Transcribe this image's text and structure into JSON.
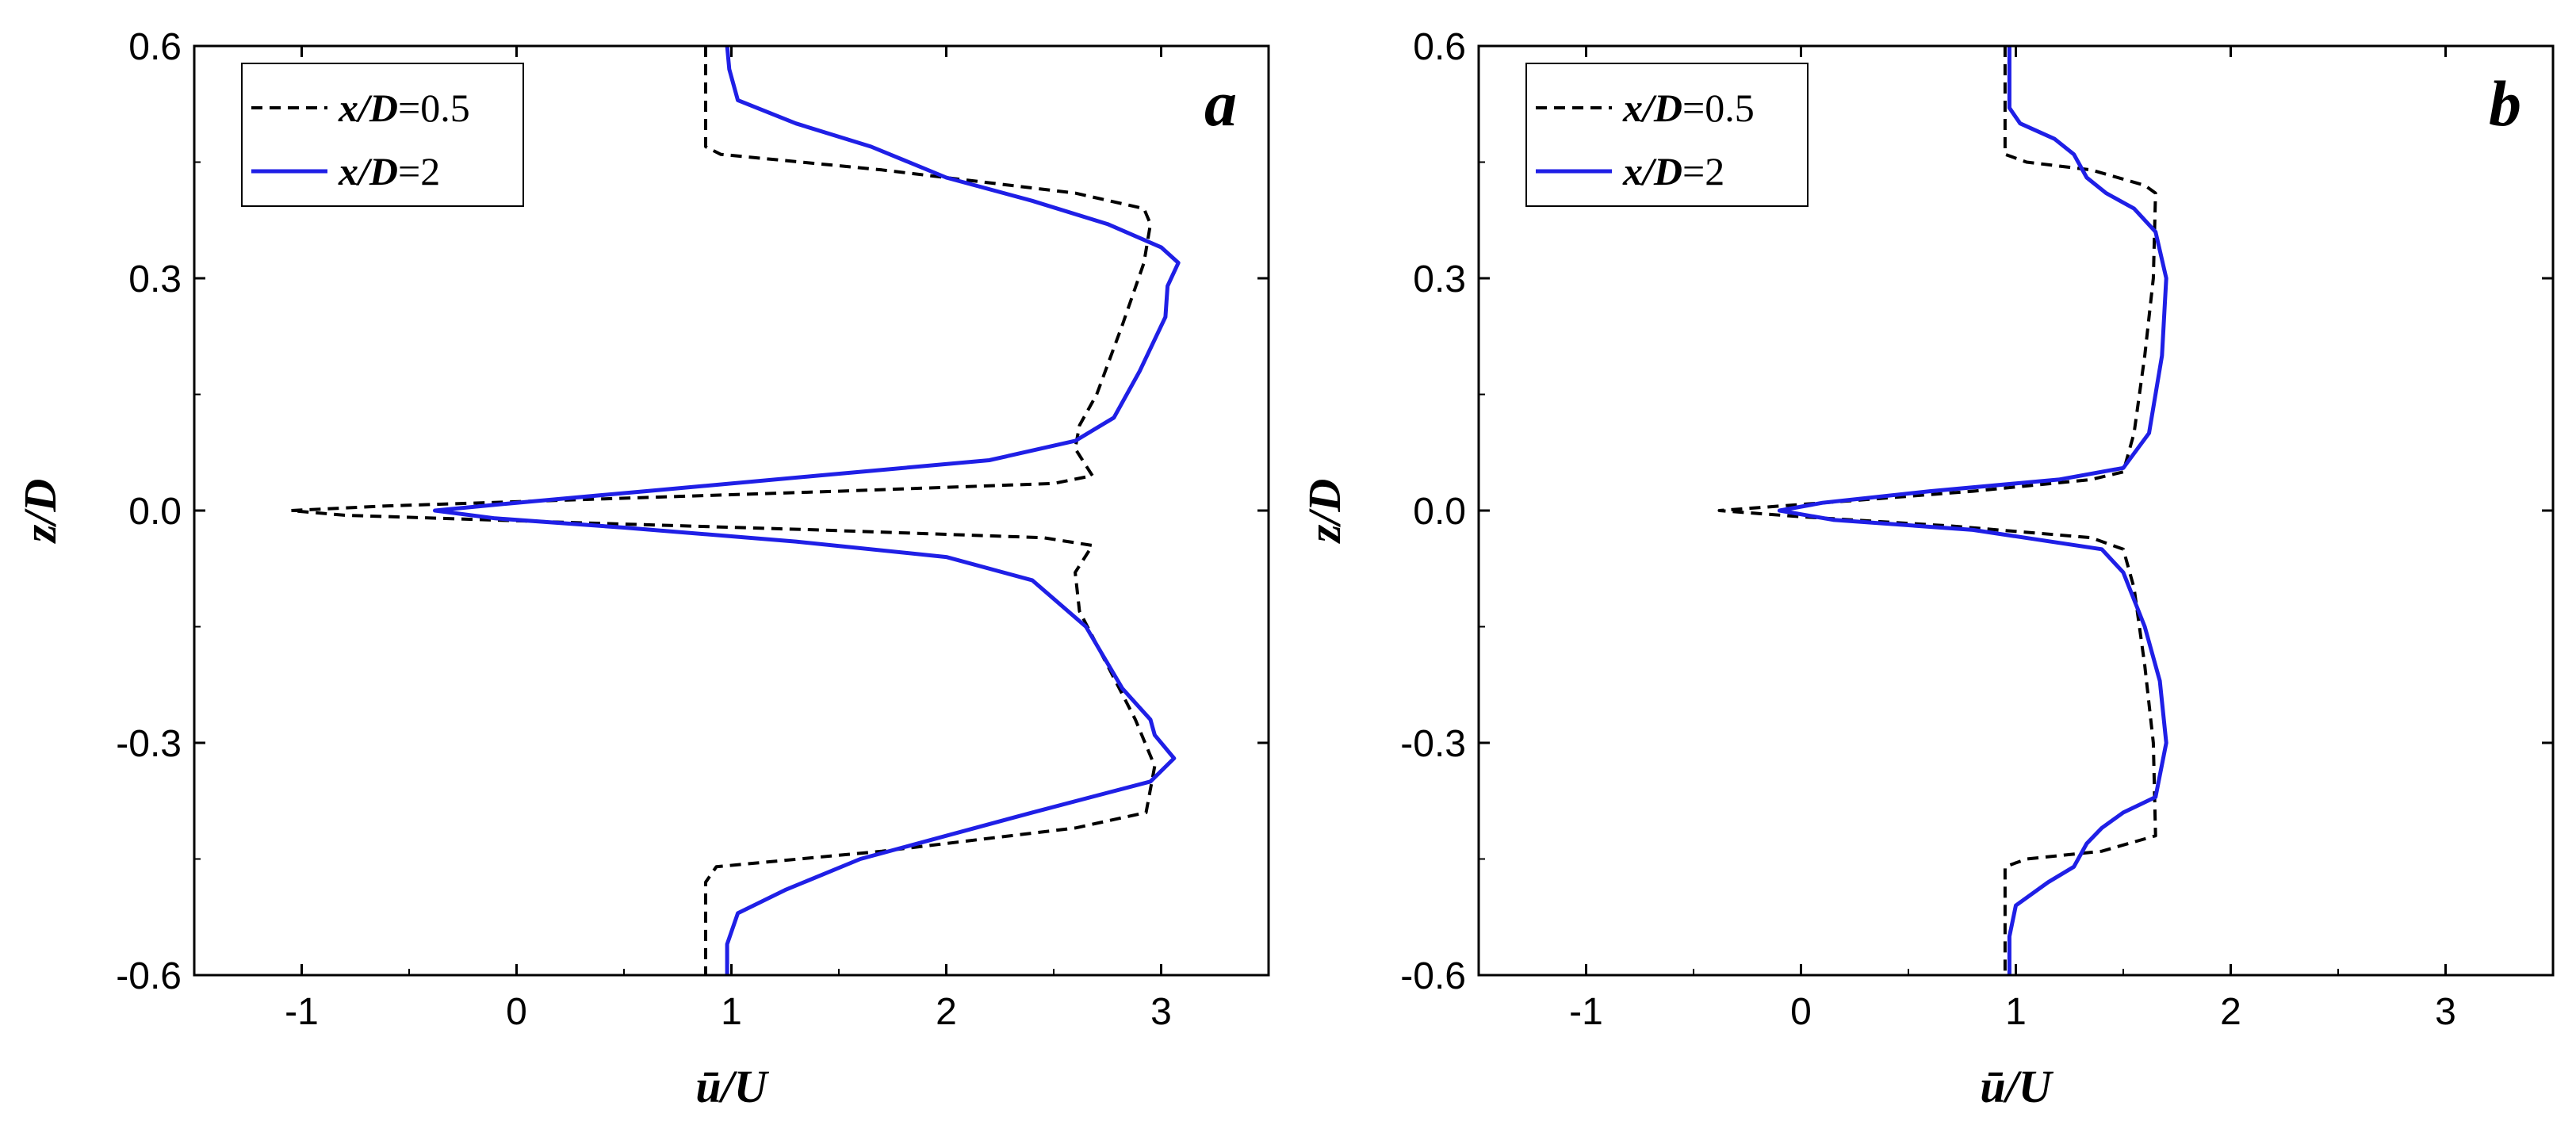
{
  "chart_data": [
    {
      "type": "line",
      "panel_label": "a",
      "xlabel": "ū/U",
      "ylabel": "z/D",
      "xlim": [
        -1.5,
        3.5
      ],
      "ylim": [
        -0.6,
        0.6
      ],
      "xticks": [
        "-1",
        "0",
        "1",
        "2",
        "3"
      ],
      "yticks": [
        "-0.6",
        "-0.3",
        "0.0",
        "0.3",
        "0.6"
      ],
      "legend": {
        "placement": "top-left"
      },
      "series": [
        {
          "name_var": "x/D",
          "name_val": "=0.5",
          "color": "#000000",
          "style": "dashed",
          "points": [
            [
              0.88,
              0.6
            ],
            [
              0.88,
              0.47
            ],
            [
              0.95,
              0.46
            ],
            [
              1.7,
              0.44
            ],
            [
              2.6,
              0.41
            ],
            [
              2.92,
              0.39
            ],
            [
              2.95,
              0.37
            ],
            [
              2.92,
              0.32
            ],
            [
              2.82,
              0.24
            ],
            [
              2.7,
              0.15
            ],
            [
              2.62,
              0.11
            ],
            [
              2.6,
              0.08
            ],
            [
              2.68,
              0.045
            ],
            [
              2.5,
              0.035
            ],
            [
              1.5,
              0.025
            ],
            [
              0.4,
              0.015
            ],
            [
              -0.6,
              0.006
            ],
            [
              -1.05,
              0.0
            ],
            [
              -0.8,
              -0.006
            ],
            [
              0.2,
              -0.015
            ],
            [
              1.4,
              -0.025
            ],
            [
              2.45,
              -0.035
            ],
            [
              2.68,
              -0.045
            ],
            [
              2.6,
              -0.08
            ],
            [
              2.62,
              -0.13
            ],
            [
              2.75,
              -0.2
            ],
            [
              2.88,
              -0.27
            ],
            [
              2.97,
              -0.33
            ],
            [
              2.93,
              -0.39
            ],
            [
              2.6,
              -0.41
            ],
            [
              1.7,
              -0.44
            ],
            [
              0.93,
              -0.46
            ],
            [
              0.88,
              -0.48
            ],
            [
              0.88,
              -0.6
            ]
          ]
        },
        {
          "name_var": "x/D",
          "name_val": "=2",
          "color": "#1f1fe6",
          "style": "solid",
          "points": [
            [
              0.98,
              0.6
            ],
            [
              0.99,
              0.57
            ],
            [
              1.03,
              0.53
            ],
            [
              1.3,
              0.5
            ],
            [
              1.65,
              0.47
            ],
            [
              2.0,
              0.43
            ],
            [
              2.4,
              0.4
            ],
            [
              2.75,
              0.37
            ],
            [
              3.0,
              0.34
            ],
            [
              3.08,
              0.32
            ],
            [
              3.03,
              0.29
            ],
            [
              3.02,
              0.25
            ],
            [
              2.9,
              0.18
            ],
            [
              2.78,
              0.12
            ],
            [
              2.6,
              0.09
            ],
            [
              2.2,
              0.065
            ],
            [
              1.4,
              0.045
            ],
            [
              0.6,
              0.025
            ],
            [
              0.0,
              0.01
            ],
            [
              -0.38,
              0.0
            ],
            [
              -0.1,
              -0.01
            ],
            [
              0.5,
              -0.022
            ],
            [
              1.3,
              -0.04
            ],
            [
              2.0,
              -0.06
            ],
            [
              2.4,
              -0.09
            ],
            [
              2.65,
              -0.15
            ],
            [
              2.82,
              -0.23
            ],
            [
              2.95,
              -0.27
            ],
            [
              2.97,
              -0.29
            ],
            [
              3.06,
              -0.32
            ],
            [
              2.95,
              -0.35
            ],
            [
              2.4,
              -0.39
            ],
            [
              2.0,
              -0.42
            ],
            [
              1.6,
              -0.45
            ],
            [
              1.25,
              -0.49
            ],
            [
              1.03,
              -0.52
            ],
            [
              0.98,
              -0.56
            ],
            [
              0.98,
              -0.6
            ]
          ]
        }
      ]
    },
    {
      "type": "line",
      "panel_label": "b",
      "xlabel": "ū/U",
      "ylabel": "z/D",
      "xlim": [
        -1.5,
        3.5
      ],
      "ylim": [
        -0.6,
        0.6
      ],
      "xticks": [
        "-1",
        "0",
        "1",
        "2",
        "3"
      ],
      "yticks": [
        "-0.6",
        "-0.3",
        "0.0",
        "0.3",
        "0.6"
      ],
      "legend": {
        "placement": "top-left"
      },
      "series": [
        {
          "name_var": "x/D",
          "name_val": "=0.5",
          "color": "#000000",
          "style": "dashed",
          "points": [
            [
              0.95,
              0.6
            ],
            [
              0.95,
              0.46
            ],
            [
              1.05,
              0.45
            ],
            [
              1.35,
              0.44
            ],
            [
              1.6,
              0.42
            ],
            [
              1.65,
              0.41
            ],
            [
              1.64,
              0.3
            ],
            [
              1.6,
              0.2
            ],
            [
              1.55,
              0.1
            ],
            [
              1.5,
              0.05
            ],
            [
              1.35,
              0.04
            ],
            [
              0.8,
              0.025
            ],
            [
              0.2,
              0.012
            ],
            [
              -0.38,
              0.0
            ],
            [
              0.0,
              -0.008
            ],
            [
              0.7,
              -0.02
            ],
            [
              1.35,
              -0.035
            ],
            [
              1.5,
              -0.05
            ],
            [
              1.55,
              -0.1
            ],
            [
              1.6,
              -0.2
            ],
            [
              1.64,
              -0.3
            ],
            [
              1.65,
              -0.42
            ],
            [
              1.4,
              -0.44
            ],
            [
              1.05,
              -0.45
            ],
            [
              0.95,
              -0.46
            ],
            [
              0.95,
              -0.6
            ]
          ]
        },
        {
          "name_var": "x/D",
          "name_val": "=2",
          "color": "#1f1fe6",
          "style": "solid",
          "points": [
            [
              0.97,
              0.6
            ],
            [
              0.97,
              0.52
            ],
            [
              1.02,
              0.5
            ],
            [
              1.18,
              0.48
            ],
            [
              1.27,
              0.46
            ],
            [
              1.33,
              0.43
            ],
            [
              1.42,
              0.41
            ],
            [
              1.55,
              0.39
            ],
            [
              1.65,
              0.36
            ],
            [
              1.7,
              0.3
            ],
            [
              1.68,
              0.2
            ],
            [
              1.62,
              0.1
            ],
            [
              1.5,
              0.055
            ],
            [
              1.2,
              0.04
            ],
            [
              0.6,
              0.025
            ],
            [
              0.1,
              0.01
            ],
            [
              -0.1,
              0.0
            ],
            [
              0.15,
              -0.012
            ],
            [
              0.8,
              -0.025
            ],
            [
              1.4,
              -0.05
            ],
            [
              1.5,
              -0.08
            ],
            [
              1.6,
              -0.15
            ],
            [
              1.67,
              -0.22
            ],
            [
              1.7,
              -0.3
            ],
            [
              1.65,
              -0.37
            ],
            [
              1.5,
              -0.39
            ],
            [
              1.4,
              -0.41
            ],
            [
              1.33,
              -0.43
            ],
            [
              1.27,
              -0.46
            ],
            [
              1.15,
              -0.48
            ],
            [
              1.0,
              -0.51
            ],
            [
              0.97,
              -0.55
            ],
            [
              0.97,
              -0.6
            ]
          ]
        }
      ]
    }
  ]
}
